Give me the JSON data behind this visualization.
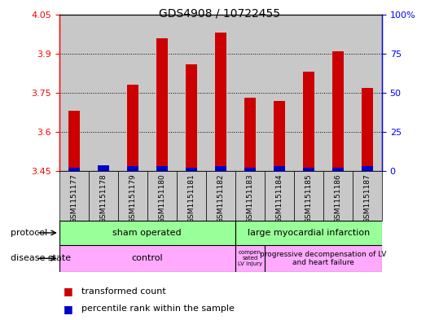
{
  "title": "GDS4908 / 10722455",
  "samples": [
    "GSM1151177",
    "GSM1151178",
    "GSM1151179",
    "GSM1151180",
    "GSM1151181",
    "GSM1151182",
    "GSM1151183",
    "GSM1151184",
    "GSM1151185",
    "GSM1151186",
    "GSM1151187"
  ],
  "transformed_count": [
    3.68,
    3.45,
    3.78,
    3.96,
    3.86,
    3.98,
    3.73,
    3.72,
    3.83,
    3.91,
    3.77
  ],
  "percentile_rank_scaled": [
    0.012,
    0.024,
    0.018,
    0.018,
    0.012,
    0.018,
    0.012,
    0.018,
    0.012,
    0.012,
    0.018
  ],
  "ylim_left": [
    3.45,
    4.05
  ],
  "ylim_right": [
    0,
    100
  ],
  "yticks_left": [
    3.45,
    3.6,
    3.75,
    3.9,
    4.05
  ],
  "ytick_labels_left": [
    "3.45",
    "3.6",
    "3.75",
    "3.9",
    "4.05"
  ],
  "yticks_right": [
    0,
    25,
    50,
    75,
    100
  ],
  "ytick_labels_right": [
    "0",
    "25",
    "50",
    "75",
    "100%"
  ],
  "bar_color_red": "#cc0000",
  "bar_color_blue": "#0000cc",
  "bar_width": 0.4,
  "baseline": 3.45,
  "protocol_color": "#99ff99",
  "disease_color": "#ffaaff",
  "bg_color": "#c8c8c8",
  "grid_ticks": [
    3.6,
    3.75,
    3.9
  ],
  "legend_red_label": "transformed count",
  "legend_blue_label": "percentile rank within the sample",
  "sham_count": 6,
  "lmi_count": 5
}
